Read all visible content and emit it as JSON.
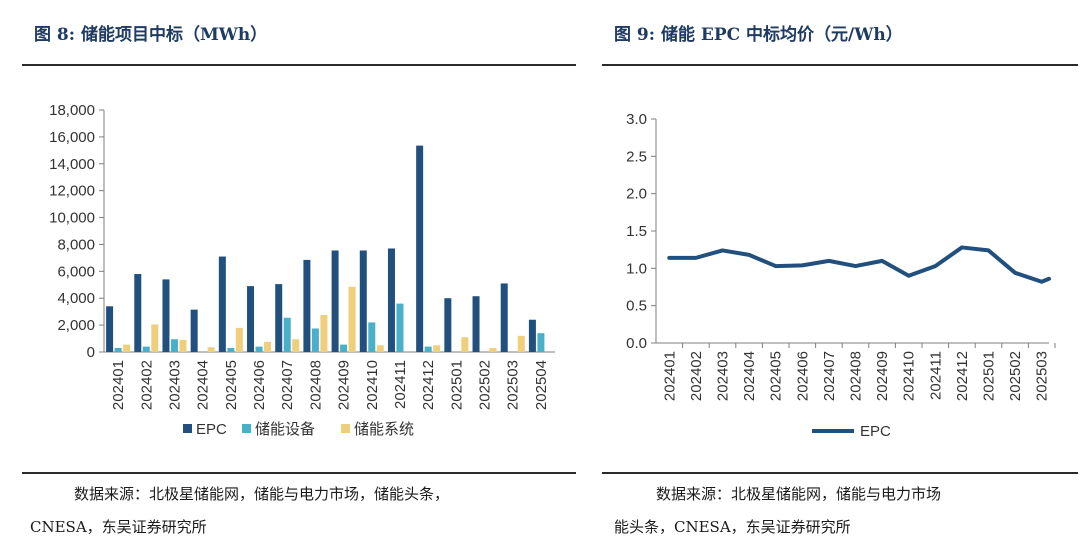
{
  "left": {
    "title": "图 8:  储能项目中标（MWh）",
    "source_line1": "数据来源：北极星储能网，储能与电力市场，储能头条，",
    "source_line2": "CNESA，东吴证券研究所"
  },
  "right": {
    "title": "图 9:  储能 EPC 中标均价（元/Wh）",
    "source_line1": "数据来源：北极星储能网，储能与电力市场",
    "source_line2": "能头条，CNESA，东吴证券研究所"
  },
  "colors": {
    "epc": "#22507e",
    "equipment": "#4ab0c8",
    "system": "#efcf7b",
    "axis": "#7f7f7f",
    "title": "#1f3b63"
  },
  "chart_data": [
    {
      "type": "bar",
      "categories": [
        "202401",
        "202402",
        "202403",
        "202404",
        "202405",
        "202406",
        "202407",
        "202408",
        "202409",
        "202410",
        "202411",
        "202412",
        "202501",
        "202502",
        "202503",
        "202504"
      ],
      "series": [
        {
          "name": "EPC",
          "values": [
            3400,
            5800,
            5400,
            3150,
            7100,
            4900,
            5050,
            6850,
            7550,
            7550,
            7700,
            15350,
            4000,
            4150,
            5100,
            2400
          ]
        },
        {
          "name": "储能设备",
          "values": [
            300,
            400,
            950,
            0,
            300,
            400,
            2550,
            1750,
            550,
            2200,
            3600,
            400,
            0,
            0,
            0,
            1400
          ]
        },
        {
          "name": "储能系统",
          "values": [
            550,
            2050,
            900,
            350,
            1800,
            750,
            950,
            2750,
            4850,
            500,
            0,
            500,
            1100,
            300,
            1200,
            0
          ]
        }
      ],
      "yticks": [
        "0",
        "2,000",
        "4,000",
        "6,000",
        "8,000",
        "10,000",
        "12,000",
        "14,000",
        "16,000",
        "18,000"
      ],
      "ylim": [
        0,
        18000
      ],
      "legend_position": "bottom"
    },
    {
      "type": "line",
      "categories": [
        "202401",
        "202402",
        "202403",
        "202404",
        "202405",
        "202406",
        "202407",
        "202408",
        "202409",
        "202410",
        "202411",
        "202412",
        "202501",
        "202502",
        "202503"
      ],
      "series": [
        {
          "name": "EPC",
          "values": [
            1.14,
            1.14,
            1.24,
            1.18,
            1.03,
            1.04,
            1.1,
            1.03,
            1.1,
            0.9,
            1.03,
            1.28,
            1.24,
            0.94,
            0.82
          ]
        }
      ],
      "extra_tail_value": 0.86,
      "yticks": [
        "0.0",
        "0.5",
        "1.0",
        "1.5",
        "2.0",
        "2.5",
        "3.0"
      ],
      "ylim": [
        0,
        3.0
      ],
      "legend_position": "bottom"
    }
  ]
}
